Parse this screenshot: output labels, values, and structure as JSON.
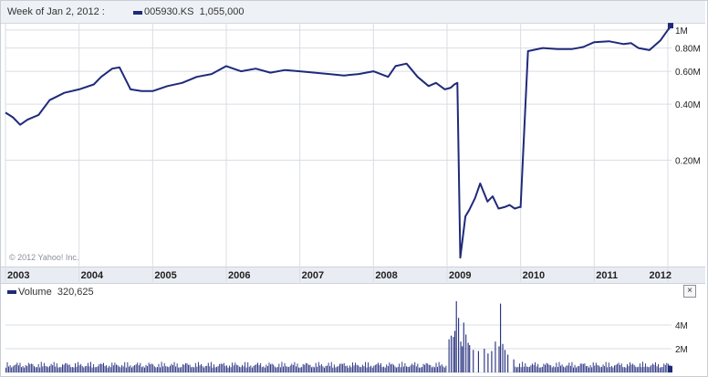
{
  "header": {
    "week_label": "Week of Jan 2, 2012 :",
    "ticker": "005930.KS",
    "ticker_value": "1,055,000"
  },
  "volume_panel": {
    "label": "Volume",
    "value": "320,625",
    "close_glyph": "×"
  },
  "copyright": "© 2012 Yahoo! Inc.",
  "colors": {
    "line": "#1f2a7a",
    "grid": "#d9dde3",
    "band": "#e9edf3"
  },
  "chart_data": [
    {
      "type": "line",
      "series": [
        {
          "name": "005930.KS"
        }
      ],
      "x_ticks": [
        "2003",
        "2004",
        "2005",
        "2006",
        "2007",
        "2008",
        "2009",
        "2010",
        "2011",
        "2012"
      ],
      "y_scale": "log",
      "y_ticks": [
        {
          "label": "1M",
          "value": 1000000
        },
        {
          "label": "0.80M",
          "value": 800000
        },
        {
          "label": "0.60M",
          "value": 600000
        },
        {
          "label": "0.40M",
          "value": 400000
        },
        {
          "label": "0.20M",
          "value": 200000
        }
      ],
      "x": [
        2003.0,
        2003.1,
        2003.2,
        2003.3,
        2003.45,
        2003.6,
        2003.8,
        2004.0,
        2004.2,
        2004.3,
        2004.45,
        2004.55,
        2004.7,
        2004.85,
        2005.0,
        2005.2,
        2005.4,
        2005.6,
        2005.8,
        2006.0,
        2006.2,
        2006.4,
        2006.6,
        2006.8,
        2007.0,
        2007.2,
        2007.4,
        2007.6,
        2007.8,
        2008.0,
        2008.2,
        2008.3,
        2008.45,
        2008.6,
        2008.75,
        2008.85,
        2008.97,
        2009.05,
        2009.1,
        2009.14,
        2009.18,
        2009.25,
        2009.3,
        2009.38,
        2009.45,
        2009.55,
        2009.62,
        2009.7,
        2009.78,
        2009.85,
        2009.92,
        2009.98,
        2010.0,
        2010.1,
        2010.3,
        2010.5,
        2010.7,
        2010.85,
        2011.0,
        2011.2,
        2011.4,
        2011.5,
        2011.6,
        2011.75,
        2011.9,
        2012.0,
        2012.05
      ],
      "values": [
        360000,
        340000,
        310000,
        330000,
        350000,
        420000,
        460000,
        480000,
        510000,
        560000,
        620000,
        630000,
        480000,
        470000,
        470000,
        500000,
        520000,
        560000,
        580000,
        640000,
        600000,
        620000,
        590000,
        610000,
        600000,
        590000,
        580000,
        570000,
        580000,
        600000,
        560000,
        640000,
        660000,
        560000,
        500000,
        520000,
        480000,
        490000,
        510000,
        520000,
        60000,
        100000,
        108000,
        125000,
        150000,
        120000,
        128000,
        110000,
        112000,
        115000,
        110000,
        112000,
        112000,
        770000,
        800000,
        790000,
        790000,
        810000,
        860000,
        870000,
        840000,
        850000,
        800000,
        780000,
        880000,
        1000000,
        1055000
      ]
    },
    {
      "type": "bar",
      "series": [
        {
          "name": "Volume"
        }
      ],
      "y_ticks": [
        {
          "label": "4M",
          "value": 4000000
        },
        {
          "label": "2M",
          "value": 2000000
        }
      ],
      "ylim": [
        0,
        6000000
      ],
      "x": [
        2009.02,
        2009.05,
        2009.08,
        2009.1,
        2009.12,
        2009.15,
        2009.18,
        2009.2,
        2009.22,
        2009.25,
        2009.28,
        2009.3,
        2009.35,
        2009.42,
        2009.5,
        2009.55,
        2009.6,
        2009.65,
        2009.7,
        2009.72,
        2009.75,
        2009.78,
        2009.82,
        2009.9
      ],
      "values": [
        2800000,
        3100000,
        3000000,
        3500000,
        6000000,
        4600000,
        2600000,
        2200000,
        4200000,
        3200000,
        2500000,
        2300000,
        1900000,
        1800000,
        2000000,
        1600000,
        1800000,
        2600000,
        2200000,
        5800000,
        2400000,
        1900000,
        1500000,
        1100000
      ],
      "baseline_other_weeks": 900000,
      "latest_week_value": 320625
    }
  ]
}
